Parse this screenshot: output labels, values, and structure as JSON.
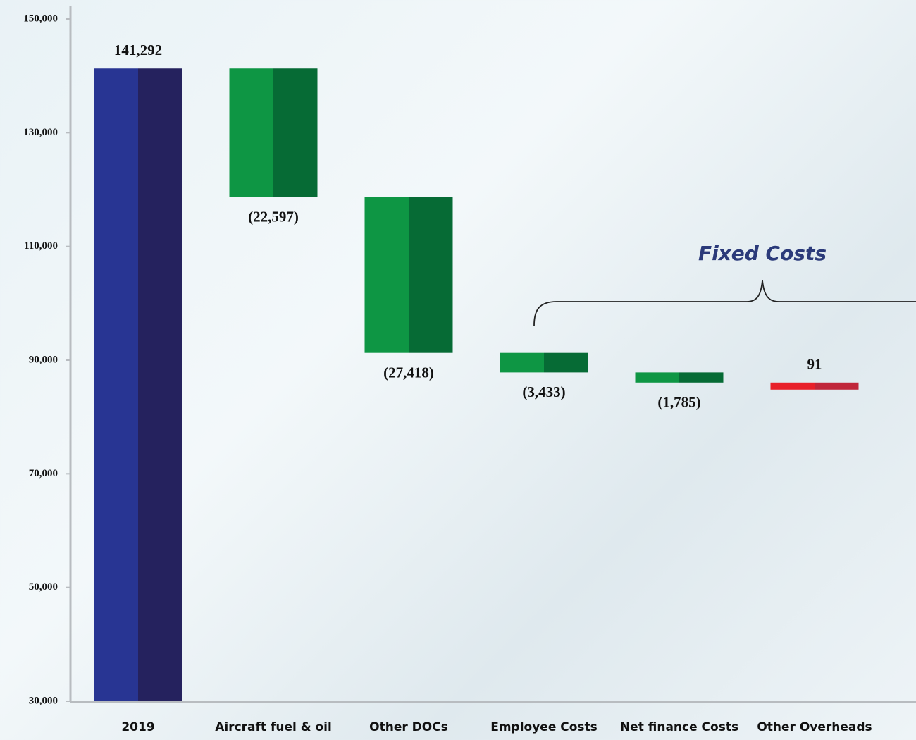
{
  "chart_data": {
    "type": "waterfall",
    "annotation": "Fixed Costs",
    "categories": [
      "2019",
      "Aircraft fuel & oil",
      "Other DOCs",
      "Employee Costs",
      "Net finance Costs",
      "Other Overheads"
    ],
    "values": [
      141292,
      -22597,
      -27418,
      -3433,
      -1785,
      91
    ],
    "value_labels": [
      "141,292",
      "(22,597)",
      "(27,418)",
      "(3,433)",
      "(1,785)",
      "91"
    ],
    "colors": {
      "total": "#283593",
      "decrease": "#0e9644",
      "increase": "#e8202a"
    },
    "ylim": [
      30000,
      150000
    ],
    "yticks": [
      {
        "value": 30000,
        "label": "30,000"
      },
      {
        "value": 50000,
        "label": "50,000"
      },
      {
        "value": 70000,
        "label": "70,000"
      },
      {
        "value": 90000,
        "label": "90,000"
      },
      {
        "value": 110000,
        "label": "110,000"
      },
      {
        "value": 130000,
        "label": "130,000"
      },
      {
        "value": 150000,
        "label": "150,000"
      }
    ]
  }
}
